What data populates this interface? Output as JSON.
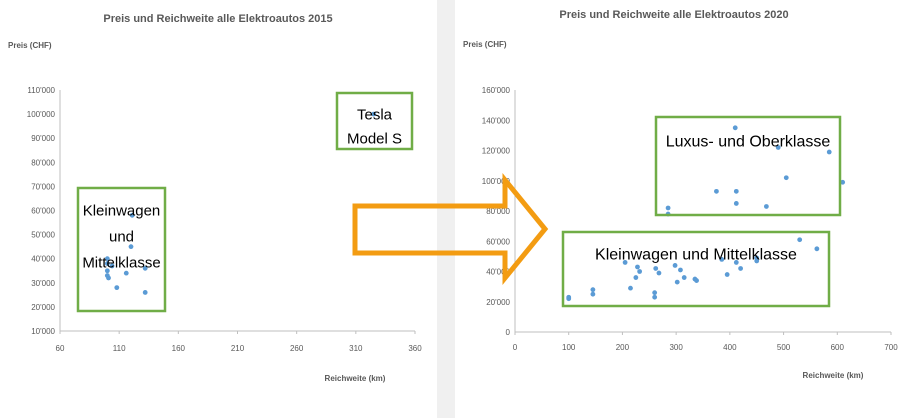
{
  "chart_data": [
    {
      "type": "scatter",
      "title": "Preis und Reichweite alle Elektroautos 2015",
      "ylabel": "Preis (CHF)",
      "xlabel": "Reichweite (km)",
      "xlim": [
        60,
        360
      ],
      "ylim": [
        10000,
        110000
      ],
      "xticks": [
        "60",
        "110",
        "160",
        "210",
        "260",
        "310",
        "360"
      ],
      "yticks": [
        "10'000",
        "20'000",
        "30'000",
        "40'000",
        "50'000",
        "60'000",
        "70'000",
        "80'000",
        "90'000",
        "100'000",
        "110'000"
      ],
      "grid": false,
      "color": "#5b9bd5",
      "points": [
        {
          "x": 100,
          "y": 40000
        },
        {
          "x": 100,
          "y": 38000
        },
        {
          "x": 100,
          "y": 35000
        },
        {
          "x": 100,
          "y": 33000
        },
        {
          "x": 101,
          "y": 32000
        },
        {
          "x": 104,
          "y": 37000
        },
        {
          "x": 108,
          "y": 28000
        },
        {
          "x": 116,
          "y": 34000
        },
        {
          "x": 120,
          "y": 45000
        },
        {
          "x": 121,
          "y": 58000
        },
        {
          "x": 132,
          "y": 36000
        },
        {
          "x": 132,
          "y": 26000
        },
        {
          "x": 325,
          "y": 100000
        }
      ],
      "annotations": [
        {
          "lines": [
            "Tesla",
            "Model S"
          ]
        },
        {
          "lines": [
            "Kleinwagen",
            "und",
            "Mittelklasse"
          ]
        }
      ],
      "box_color": "#70ad47"
    },
    {
      "type": "scatter",
      "title": "Preis und Reichweite alle Elektroautos 2020",
      "ylabel": "Preis (CHF)",
      "xlabel": "Reichweite (km)",
      "xlim": [
        0,
        700
      ],
      "ylim": [
        0,
        160000
      ],
      "xticks": [
        "0",
        "100",
        "200",
        "300",
        "400",
        "500",
        "600",
        "700"
      ],
      "yticks": [
        "0",
        "20'000",
        "40'000",
        "60'000",
        "80'000",
        "100'000",
        "120'000",
        "140'000",
        "160'000"
      ],
      "grid": false,
      "color": "#5b9bd5",
      "points": [
        {
          "x": 100,
          "y": 22000
        },
        {
          "x": 100,
          "y": 23000
        },
        {
          "x": 145,
          "y": 25000
        },
        {
          "x": 145,
          "y": 28000
        },
        {
          "x": 205,
          "y": 46000
        },
        {
          "x": 215,
          "y": 29000
        },
        {
          "x": 225,
          "y": 36000
        },
        {
          "x": 228,
          "y": 43000
        },
        {
          "x": 232,
          "y": 40000
        },
        {
          "x": 260,
          "y": 23000
        },
        {
          "x": 260,
          "y": 26000
        },
        {
          "x": 262,
          "y": 42000
        },
        {
          "x": 268,
          "y": 39000
        },
        {
          "x": 285,
          "y": 78000
        },
        {
          "x": 285,
          "y": 82000
        },
        {
          "x": 298,
          "y": 44000
        },
        {
          "x": 302,
          "y": 33000
        },
        {
          "x": 308,
          "y": 41000
        },
        {
          "x": 315,
          "y": 36000
        },
        {
          "x": 335,
          "y": 35000
        },
        {
          "x": 338,
          "y": 34000
        },
        {
          "x": 375,
          "y": 93000
        },
        {
          "x": 385,
          "y": 48000
        },
        {
          "x": 395,
          "y": 38000
        },
        {
          "x": 410,
          "y": 135000
        },
        {
          "x": 412,
          "y": 85000
        },
        {
          "x": 412,
          "y": 93000
        },
        {
          "x": 412,
          "y": 46000
        },
        {
          "x": 420,
          "y": 42000
        },
        {
          "x": 450,
          "y": 47000
        },
        {
          "x": 450,
          "y": 49000
        },
        {
          "x": 468,
          "y": 83000
        },
        {
          "x": 490,
          "y": 122000
        },
        {
          "x": 505,
          "y": 102000
        },
        {
          "x": 530,
          "y": 61000
        },
        {
          "x": 562,
          "y": 55000
        },
        {
          "x": 585,
          "y": 119000
        },
        {
          "x": 610,
          "y": 99000
        }
      ],
      "annotations": [
        {
          "lines": [
            "Luxus- und Oberklasse"
          ]
        },
        {
          "lines": [
            "Kleinwagen und Mittelklasse"
          ]
        }
      ],
      "box_color": "#70ad47"
    }
  ],
  "arrow_color": "#f39c12"
}
